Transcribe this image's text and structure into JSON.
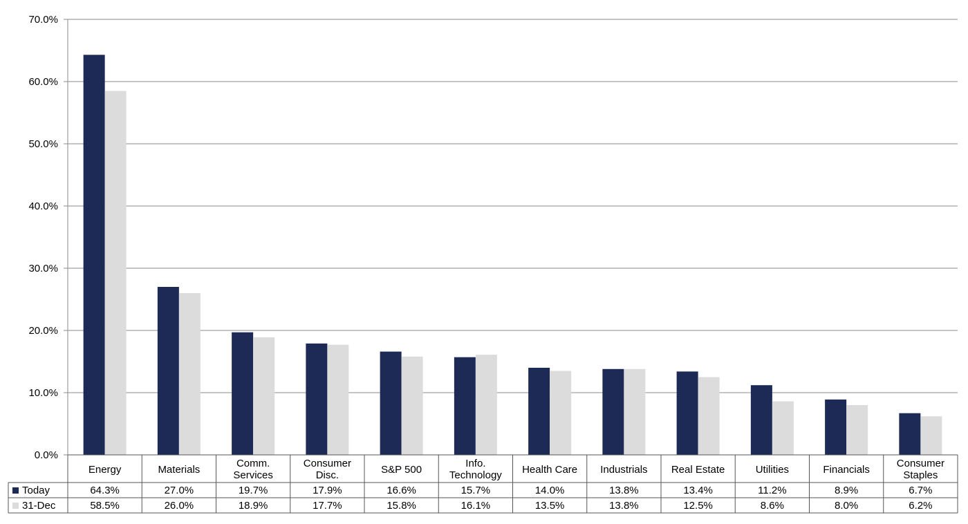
{
  "chart_data": {
    "type": "bar",
    "title": "",
    "xlabel": "",
    "ylabel": "",
    "ylim": [
      0,
      70
    ],
    "yticks": [
      "0.0%",
      "10.0%",
      "20.0%",
      "30.0%",
      "40.0%",
      "50.0%",
      "60.0%",
      "70.0%"
    ],
    "categories": [
      [
        "Energy"
      ],
      [
        "Materials"
      ],
      [
        "Comm.",
        "Services"
      ],
      [
        "Consumer",
        "Disc."
      ],
      [
        "S&P 500"
      ],
      [
        "Info.",
        "Technology"
      ],
      [
        "Health Care"
      ],
      [
        "Industrials"
      ],
      [
        "Real Estate"
      ],
      [
        "Utilities"
      ],
      [
        "Financials"
      ],
      [
        "Consumer",
        "Staples"
      ]
    ],
    "series": [
      {
        "name": "Today",
        "color": "#1c2a55",
        "values": [
          64.3,
          27.0,
          19.7,
          17.9,
          16.6,
          15.7,
          14.0,
          13.8,
          13.4,
          11.2,
          8.9,
          6.7
        ],
        "labels": [
          "64.3%",
          "27.0%",
          "19.7%",
          "17.9%",
          "16.6%",
          "15.7%",
          "14.0%",
          "13.8%",
          "13.4%",
          "11.2%",
          "8.9%",
          "6.7%"
        ]
      },
      {
        "name": "31-Dec",
        "color": "#dcdcdc",
        "values": [
          58.5,
          26.0,
          18.9,
          17.7,
          15.8,
          16.1,
          13.5,
          13.8,
          12.5,
          8.6,
          8.0,
          6.2
        ],
        "labels": [
          "58.5%",
          "26.0%",
          "18.9%",
          "17.7%",
          "15.8%",
          "16.1%",
          "13.5%",
          "13.8%",
          "12.5%",
          "8.6%",
          "8.0%",
          "6.2%"
        ]
      }
    ],
    "grid": true,
    "legend": "data-table"
  }
}
